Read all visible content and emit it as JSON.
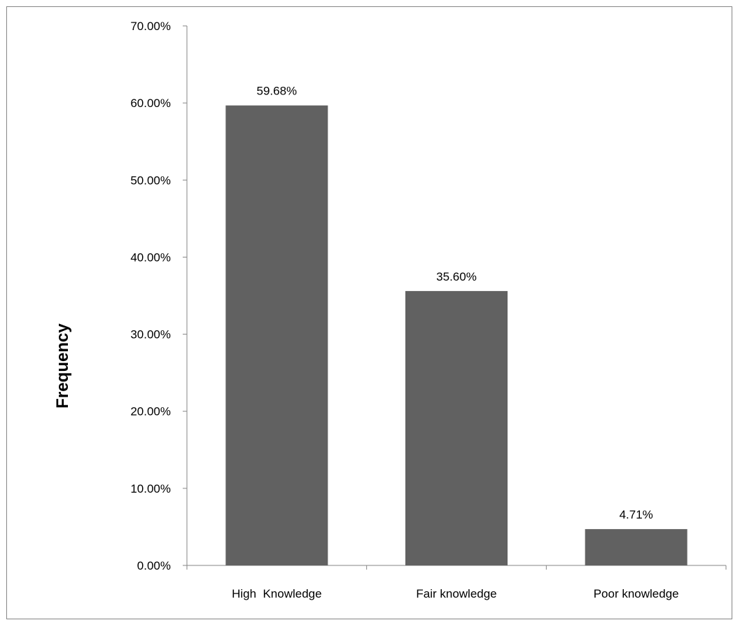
{
  "chart_data": {
    "type": "bar",
    "title": "",
    "xlabel": "",
    "ylabel": "Frequency",
    "categories": [
      "High  Knowledge",
      "Fair knowledge",
      "Poor knowledge"
    ],
    "values": [
      59.68,
      35.6,
      4.71
    ],
    "data_labels": [
      "59.68%",
      "35.60%",
      "4.71%"
    ],
    "ylim": [
      0,
      70
    ],
    "y_ticks": [
      0,
      10,
      20,
      30,
      40,
      50,
      60,
      70
    ],
    "y_tick_labels": [
      "0.00%",
      "10.00%",
      "20.00%",
      "30.00%",
      "40.00%",
      "50.00%",
      "60.00%",
      "70.00%"
    ],
    "grid": false,
    "legend": "none",
    "bar_color": "#616161",
    "axis_color": "#868686"
  }
}
